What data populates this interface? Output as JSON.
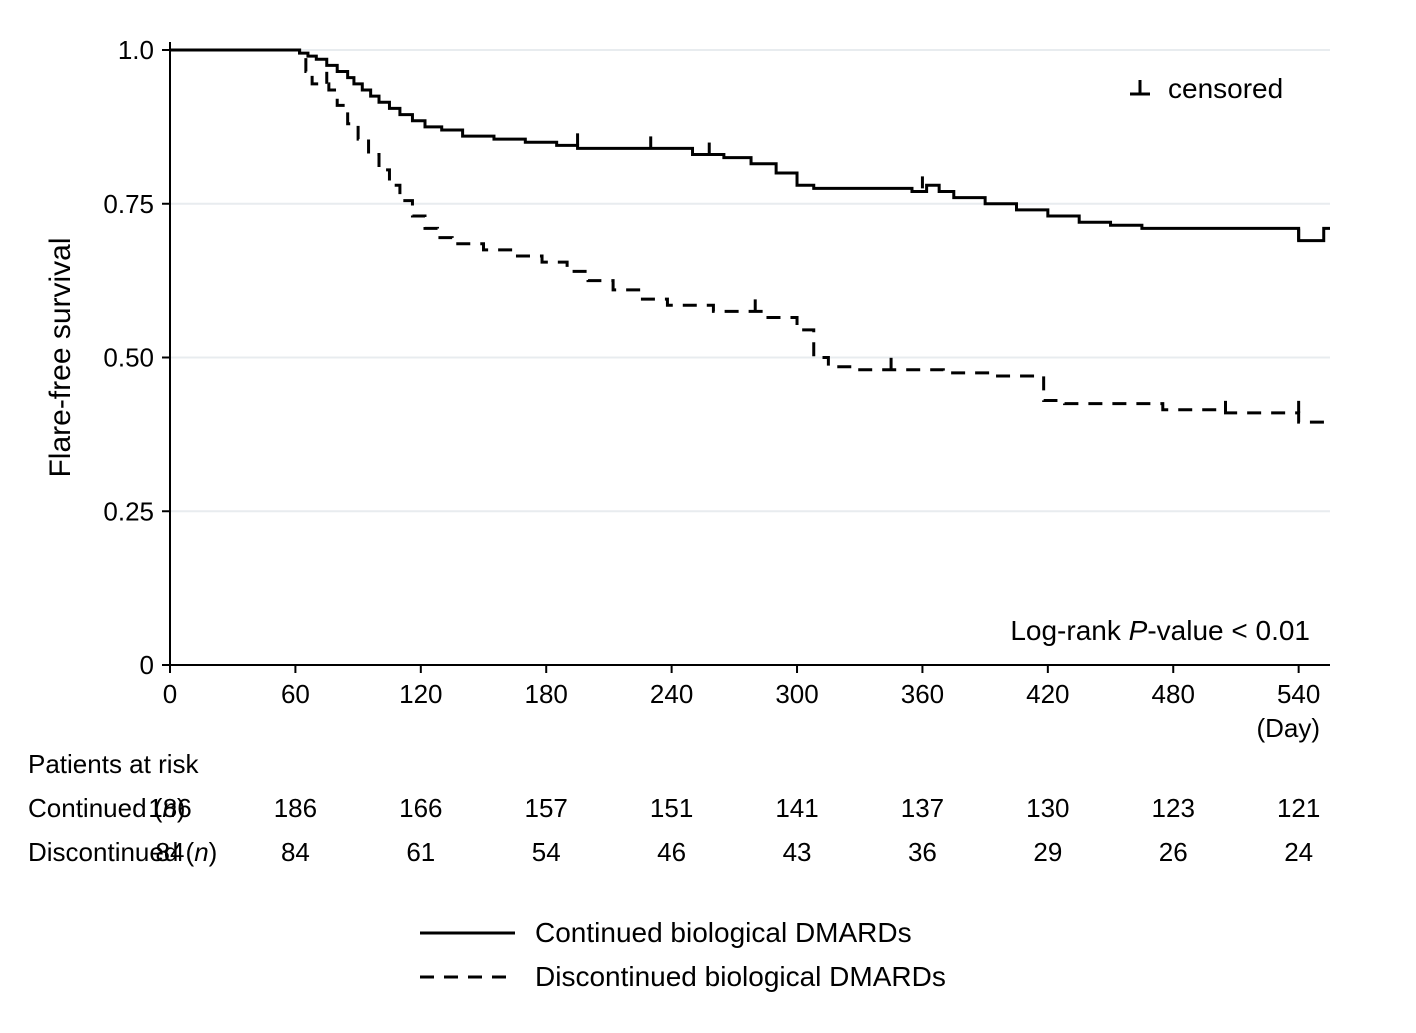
{
  "chart": {
    "type": "kaplan-meier",
    "background_color": "#ffffff",
    "plot_bg": "#ffffff",
    "grid_color": "#e8ecef",
    "axis_color": "#000000",
    "text_color": "#000000",
    "ylabel": "Flare-free  survival",
    "x_axis_unit": "(Day)",
    "xlim": [
      0,
      555
    ],
    "ylim": [
      0,
      1.0
    ],
    "xticks": [
      0,
      60,
      120,
      180,
      240,
      300,
      360,
      420,
      480,
      540
    ],
    "yticks": [
      0,
      0.25,
      0.5,
      0.75,
      1.0
    ],
    "ytick_labels": [
      "0",
      "0.25",
      "0.50",
      "0.75",
      "1.0"
    ],
    "censored_label": "censored",
    "pvalue_text": "Log-rank P-value < 0.01",
    "pvalue_prefix": "Log-rank ",
    "pvalue_italic": "P",
    "pvalue_suffix": "-value < 0.01",
    "line_width_solid": 3,
    "line_width_dashed": 3,
    "dash_pattern": "14,10",
    "series": {
      "continued": {
        "label": "Continued biological DMARDs",
        "color": "#000000",
        "style": "solid",
        "points": [
          [
            0,
            1.0
          ],
          [
            60,
            1.0
          ],
          [
            62,
            1.0
          ],
          [
            62,
            0.995
          ],
          [
            66,
            0.995
          ],
          [
            66,
            0.99
          ],
          [
            70,
            0.99
          ],
          [
            70,
            0.985
          ],
          [
            75,
            0.985
          ],
          [
            75,
            0.975
          ],
          [
            80,
            0.975
          ],
          [
            80,
            0.965
          ],
          [
            85,
            0.965
          ],
          [
            85,
            0.955
          ],
          [
            88,
            0.955
          ],
          [
            88,
            0.945
          ],
          [
            92,
            0.945
          ],
          [
            92,
            0.935
          ],
          [
            96,
            0.935
          ],
          [
            96,
            0.925
          ],
          [
            100,
            0.925
          ],
          [
            100,
            0.915
          ],
          [
            105,
            0.915
          ],
          [
            105,
            0.905
          ],
          [
            110,
            0.905
          ],
          [
            110,
            0.895
          ],
          [
            116,
            0.895
          ],
          [
            116,
            0.885
          ],
          [
            122,
            0.885
          ],
          [
            122,
            0.875
          ],
          [
            130,
            0.875
          ],
          [
            130,
            0.87
          ],
          [
            140,
            0.87
          ],
          [
            140,
            0.86
          ],
          [
            155,
            0.86
          ],
          [
            155,
            0.855
          ],
          [
            170,
            0.855
          ],
          [
            170,
            0.85
          ],
          [
            185,
            0.85
          ],
          [
            185,
            0.845
          ],
          [
            195,
            0.845
          ],
          [
            195,
            0.84
          ],
          [
            250,
            0.84
          ],
          [
            250,
            0.83
          ],
          [
            265,
            0.83
          ],
          [
            265,
            0.825
          ],
          [
            278,
            0.825
          ],
          [
            278,
            0.815
          ],
          [
            290,
            0.815
          ],
          [
            290,
            0.8
          ],
          [
            300,
            0.8
          ],
          [
            300,
            0.78
          ],
          [
            308,
            0.78
          ],
          [
            308,
            0.775
          ],
          [
            355,
            0.775
          ],
          [
            355,
            0.77
          ],
          [
            362,
            0.77
          ],
          [
            362,
            0.78
          ],
          [
            368,
            0.78
          ],
          [
            368,
            0.77
          ],
          [
            375,
            0.77
          ],
          [
            375,
            0.76
          ],
          [
            390,
            0.76
          ],
          [
            390,
            0.75
          ],
          [
            405,
            0.75
          ],
          [
            405,
            0.74
          ],
          [
            420,
            0.74
          ],
          [
            420,
            0.73
          ],
          [
            435,
            0.73
          ],
          [
            435,
            0.72
          ],
          [
            450,
            0.72
          ],
          [
            450,
            0.715
          ],
          [
            465,
            0.715
          ],
          [
            465,
            0.71
          ],
          [
            480,
            0.71
          ],
          [
            540,
            0.71
          ],
          [
            540,
            0.69
          ],
          [
            552,
            0.69
          ],
          [
            552,
            0.71
          ],
          [
            555,
            0.71
          ]
        ],
        "censor_marks": [
          [
            195,
            0.845
          ],
          [
            230,
            0.84
          ],
          [
            258,
            0.83
          ],
          [
            360,
            0.775
          ],
          [
            540,
            0.69
          ]
        ]
      },
      "discontinued": {
        "label": "Discontinued biological DMARDs",
        "color": "#000000",
        "style": "dashed",
        "points": [
          [
            0,
            1.0
          ],
          [
            60,
            1.0
          ],
          [
            62,
            1.0
          ],
          [
            62,
            0.99
          ],
          [
            65,
            0.99
          ],
          [
            65,
            0.965
          ],
          [
            68,
            0.965
          ],
          [
            68,
            0.945
          ],
          [
            72,
            0.945
          ],
          [
            72,
            0.945
          ],
          [
            76,
            0.945
          ],
          [
            76,
            0.935
          ],
          [
            80,
            0.935
          ],
          [
            80,
            0.91
          ],
          [
            85,
            0.91
          ],
          [
            85,
            0.88
          ],
          [
            90,
            0.88
          ],
          [
            90,
            0.855
          ],
          [
            95,
            0.855
          ],
          [
            95,
            0.83
          ],
          [
            100,
            0.83
          ],
          [
            100,
            0.805
          ],
          [
            105,
            0.805
          ],
          [
            105,
            0.78
          ],
          [
            110,
            0.78
          ],
          [
            110,
            0.755
          ],
          [
            116,
            0.755
          ],
          [
            116,
            0.73
          ],
          [
            122,
            0.73
          ],
          [
            122,
            0.71
          ],
          [
            128,
            0.71
          ],
          [
            128,
            0.695
          ],
          [
            135,
            0.695
          ],
          [
            135,
            0.685
          ],
          [
            150,
            0.685
          ],
          [
            150,
            0.675
          ],
          [
            165,
            0.675
          ],
          [
            165,
            0.665
          ],
          [
            178,
            0.665
          ],
          [
            178,
            0.655
          ],
          [
            190,
            0.655
          ],
          [
            190,
            0.64
          ],
          [
            200,
            0.64
          ],
          [
            200,
            0.625
          ],
          [
            212,
            0.625
          ],
          [
            212,
            0.61
          ],
          [
            225,
            0.61
          ],
          [
            225,
            0.595
          ],
          [
            238,
            0.595
          ],
          [
            238,
            0.585
          ],
          [
            260,
            0.585
          ],
          [
            260,
            0.575
          ],
          [
            285,
            0.575
          ],
          [
            285,
            0.565
          ],
          [
            300,
            0.565
          ],
          [
            300,
            0.545
          ],
          [
            308,
            0.545
          ],
          [
            308,
            0.5
          ],
          [
            315,
            0.5
          ],
          [
            315,
            0.485
          ],
          [
            330,
            0.485
          ],
          [
            330,
            0.48
          ],
          [
            370,
            0.48
          ],
          [
            370,
            0.475
          ],
          [
            395,
            0.475
          ],
          [
            395,
            0.47
          ],
          [
            418,
            0.47
          ],
          [
            418,
            0.43
          ],
          [
            428,
            0.43
          ],
          [
            428,
            0.425
          ],
          [
            475,
            0.425
          ],
          [
            475,
            0.415
          ],
          [
            505,
            0.415
          ],
          [
            505,
            0.41
          ],
          [
            540,
            0.41
          ],
          [
            540,
            0.395
          ],
          [
            555,
            0.395
          ]
        ],
        "censor_marks": [
          [
            75,
            0.945
          ],
          [
            280,
            0.575
          ],
          [
            345,
            0.48
          ],
          [
            505,
            0.41
          ],
          [
            540,
            0.41
          ]
        ]
      }
    },
    "risk_table": {
      "header": "Patients at risk",
      "rows": [
        {
          "label_prefix": "Continued (",
          "label_italic": "n",
          "label_suffix": ")",
          "values": [
            186,
            186,
            166,
            157,
            151,
            141,
            137,
            130,
            123,
            121
          ]
        },
        {
          "label_prefix": "Discontinued (",
          "label_italic": "n",
          "label_suffix": ")",
          "values": [
            84,
            84,
            61,
            54,
            46,
            43,
            36,
            29,
            26,
            24
          ]
        }
      ]
    }
  }
}
